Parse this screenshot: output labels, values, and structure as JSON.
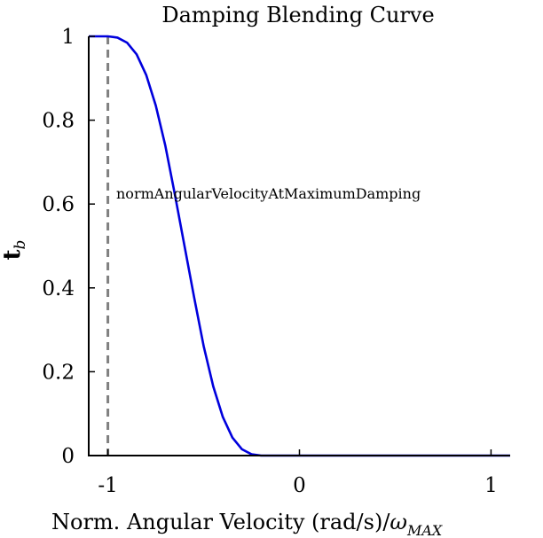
{
  "chart_data": {
    "type": "line",
    "title": "Damping Blending Curve",
    "xlabel": "Norm. Angular Velocity (rad/s)/",
    "xlabel_symbol": "ω",
    "xlabel_subscript": "MAX",
    "ylabel": "t",
    "ylabel_subscript": "b",
    "xlim": [
      -1.1,
      1.1
    ],
    "ylim": [
      0,
      1
    ],
    "xticks": [
      -1,
      0,
      1
    ],
    "xtick_labels": [
      "-1",
      "0",
      "1"
    ],
    "yticks": [
      0,
      0.2,
      0.4,
      0.6,
      0.8,
      1
    ],
    "ytick_labels": [
      "0",
      "0.2",
      "0.4",
      "0.6",
      "0.8",
      "1"
    ],
    "grid": false,
    "series": [
      {
        "color": "#0000dd",
        "x": [
          -1.1,
          -1.0,
          -0.95,
          -0.9,
          -0.85,
          -0.8,
          -0.75,
          -0.7,
          -0.65,
          -0.6,
          -0.55,
          -0.5,
          -0.45,
          -0.4,
          -0.35,
          -0.3,
          -0.25,
          -0.2,
          -0.15,
          -0.1,
          -0.05,
          0.0,
          0.5,
          1.0,
          1.1
        ],
        "y": [
          1.0,
          1.0,
          0.997,
          0.985,
          0.957,
          0.908,
          0.835,
          0.739,
          0.622,
          0.5,
          0.378,
          0.261,
          0.165,
          0.092,
          0.043,
          0.015,
          0.003,
          0.0,
          0.0,
          0.0,
          0.0,
          0.0,
          0.0,
          0.0,
          0.0
        ]
      }
    ],
    "vline": {
      "x": -1,
      "color": "#808080",
      "style": "dashed",
      "label": "normAngularVelocityAtMaximumDamping"
    }
  }
}
